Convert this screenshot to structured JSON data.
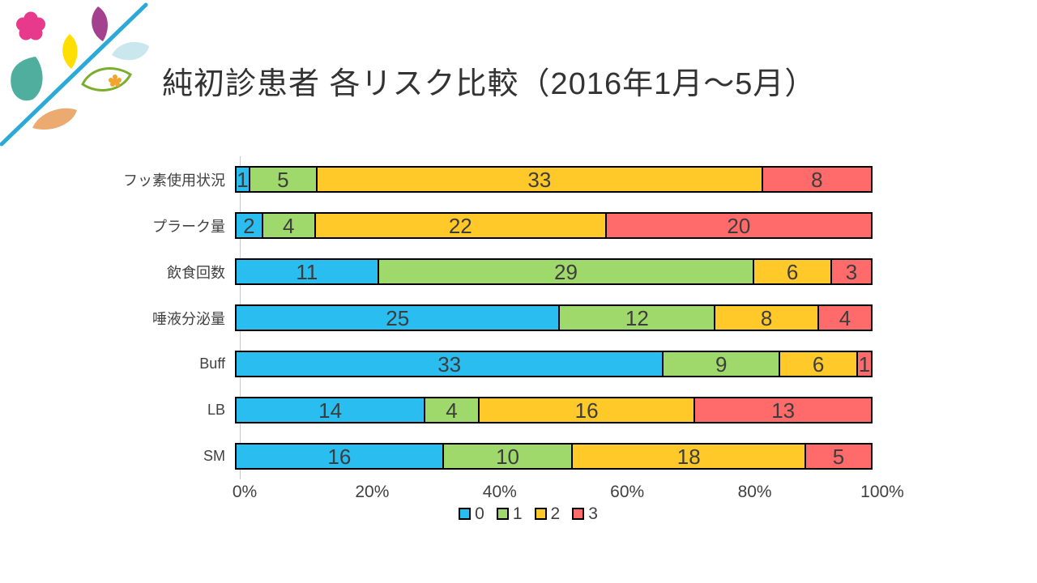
{
  "title": "純初診患者 各リスク比較（2016年1月～5月）",
  "chart_data": {
    "type": "bar",
    "subtype": "100%-stacked-horizontal",
    "title": "純初診患者 各リスク比較（2016年1月～5月）",
    "categories": [
      "フッ素使用状況",
      "プラーク量",
      "飲食回数",
      "唾液分泌量",
      "Buff",
      "LB",
      "SM"
    ],
    "series": [
      {
        "name": "0",
        "color": "#29BDF0",
        "values": [
          1,
          2,
          11,
          25,
          33,
          14,
          16
        ]
      },
      {
        "name": "1",
        "color": "#9FD96B",
        "values": [
          5,
          4,
          29,
          12,
          9,
          4,
          10
        ]
      },
      {
        "name": "2",
        "color": "#FFC929",
        "values": [
          33,
          22,
          6,
          8,
          6,
          16,
          18
        ]
      },
      {
        "name": "3",
        "color": "#FF6B6B",
        "values": [
          8,
          20,
          3,
          4,
          1,
          13,
          5
        ]
      }
    ],
    "x_ticks": [
      "0%",
      "20%",
      "40%",
      "60%",
      "80%",
      "100%"
    ],
    "x_range": [
      0,
      100
    ],
    "legend_position": "bottom",
    "legend_labels": [
      "0",
      "1",
      "2",
      "3"
    ],
    "grid": false,
    "bar_border_color": "#000000",
    "axis_line_color": "#c9c9c9",
    "data_label_color": "#3d3d3d",
    "text_color": "#404040"
  },
  "logo_colors": {
    "line": "#2BAAD8",
    "pink_flower": "#E73A8C",
    "purple_leaf": "#A4418F",
    "yellow_leaf": "#FFDE00",
    "lightblue_drop": "#C9E7EC",
    "teal_drop": "#4FAE9E",
    "green_leaf_outline": "#7AAE2B",
    "orange_flower": "#F2A52E",
    "tan_leaf": "#EBAA6F"
  }
}
